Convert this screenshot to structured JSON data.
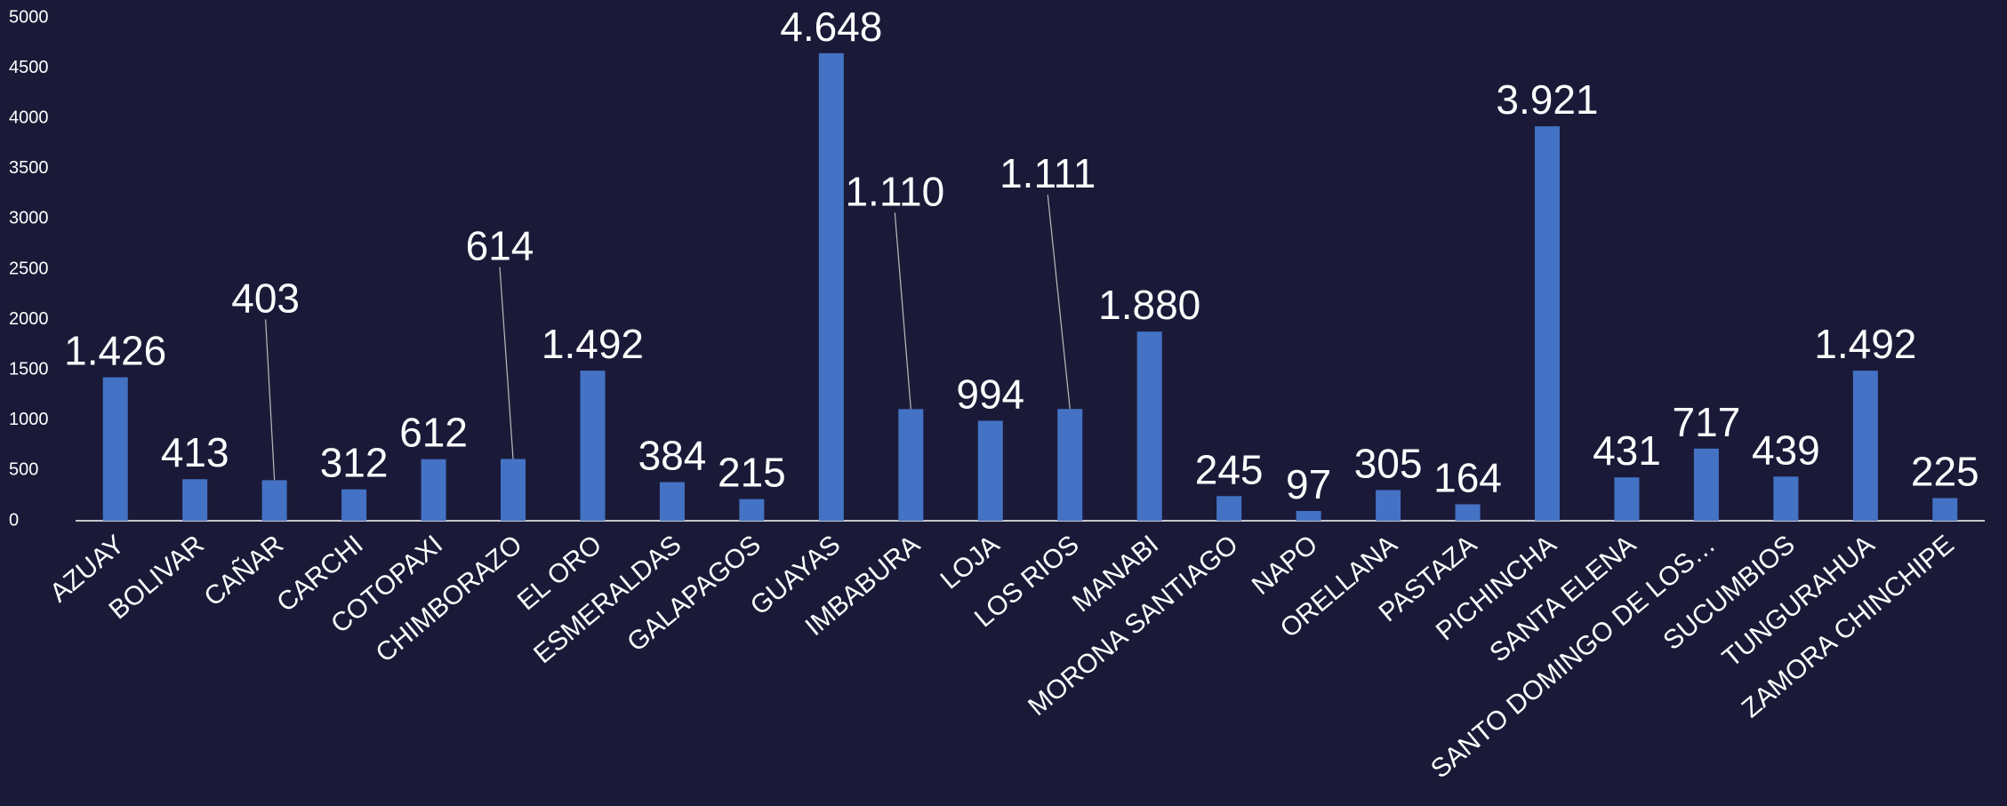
{
  "chart_data": {
    "type": "bar",
    "categories": [
      "AZUAY",
      "BOLIVAR",
      "CAÑAR",
      "CARCHI",
      "COTOPAXI",
      "CHIMBORAZO",
      "EL ORO",
      "ESMERALDAS",
      "GALAPAGOS",
      "GUAYAS",
      "IMBABURA",
      "LOJA",
      "LOS RIOS",
      "MANABI",
      "MORONA SANTIAGO",
      "NAPO",
      "ORELLANA",
      "PASTAZA",
      "PICHINCHA",
      "SANTA ELENA",
      "SANTO DOMINGO DE LOS…",
      "SUCUMBIOS",
      "TUNGURAHUA",
      "ZAMORA CHINCHIPE"
    ],
    "values": [
      1426,
      413,
      403,
      312,
      612,
      614,
      1492,
      384,
      215,
      4648,
      1110,
      994,
      1111,
      1880,
      245,
      97,
      305,
      164,
      3921,
      431,
      717,
      439,
      1492,
      225
    ],
    "value_labels": [
      "1.426",
      "413",
      "403",
      "312",
      "612",
      "614",
      "1.492",
      "384",
      "215",
      "4.648",
      "1.110",
      "994",
      "1.111",
      "1.880",
      "245",
      "97",
      "305",
      "164",
      "3.921",
      "431",
      "717",
      "439",
      "1.492",
      "225"
    ],
    "color": "#4472c4",
    "ylim": [
      0,
      5000
    ],
    "yticks": [
      0,
      500,
      1000,
      1500,
      2000,
      2500,
      3000,
      3500,
      4000,
      4500,
      5000
    ]
  }
}
